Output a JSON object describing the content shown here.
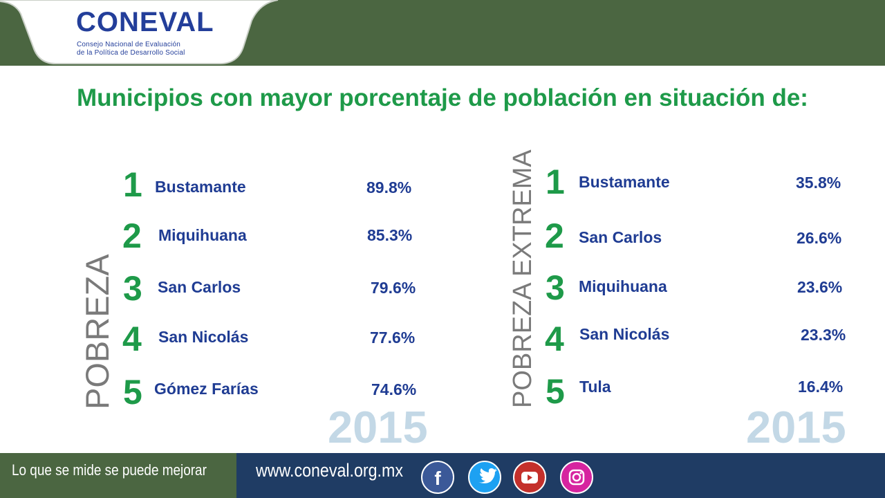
{
  "header": {
    "logo_text": "CONEVAL",
    "logo_subtitle_line1": "Consejo Nacional de Evaluación",
    "logo_subtitle_line2": "de la Política de Desarrollo Social"
  },
  "title": "Municipios con mayor porcentaje de población en situación de:",
  "pobreza": {
    "label": "POBREZA",
    "year": "2015",
    "items": [
      {
        "rank": "1",
        "name": "Bustamante",
        "pct": "89.8%"
      },
      {
        "rank": "2",
        "name": "Miquihuana",
        "pct": "85.3%"
      },
      {
        "rank": "3",
        "name": "San Carlos",
        "pct": "79.6%"
      },
      {
        "rank": "4",
        "name": "San Nicolás",
        "pct": "77.6%"
      },
      {
        "rank": "5",
        "name": "Gómez Farías",
        "pct": "74.6%"
      }
    ]
  },
  "pobreza_extrema": {
    "label": "POBREZA EXTREMA",
    "year": "2015",
    "items": [
      {
        "rank": "1",
        "name": "Bustamante",
        "pct": "35.8%"
      },
      {
        "rank": "2",
        "name": "San Carlos",
        "pct": "26.6%"
      },
      {
        "rank": "3",
        "name": "Miquihuana",
        "pct": "23.6%"
      },
      {
        "rank": "4",
        "name": "San Nicolás",
        "pct": "23.3%"
      },
      {
        "rank": "5",
        "name": "Tula",
        "pct": "16.4%"
      }
    ]
  },
  "footer": {
    "slogan": "Lo que se mide se puede mejorar",
    "website": "www.coneval.org.mx",
    "social": [
      "facebook-icon",
      "twitter-icon",
      "youtube-icon",
      "instagram-icon"
    ]
  },
  "colors": {
    "header_green": "#4b6641",
    "title_green": "#1e9a49",
    "text_blue": "#1f3c93",
    "footer_navy": "#1f3c64",
    "year_light_blue": "#c3d8e6"
  }
}
